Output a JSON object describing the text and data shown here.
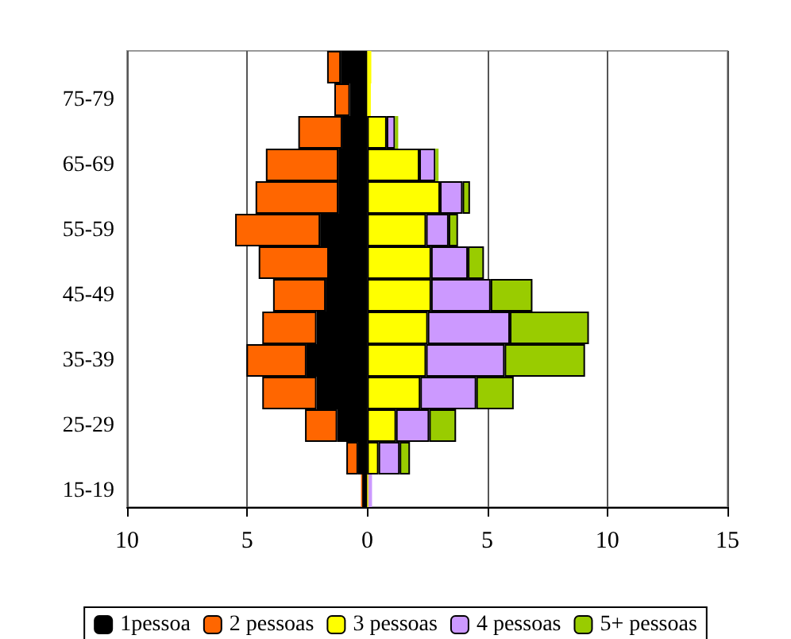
{
  "chart_data": {
    "type": "bar",
    "orientation": "horizontal",
    "stacked": true,
    "categories": [
      null,
      "75-79",
      null,
      "65-69",
      null,
      "55-59",
      null,
      "45-49",
      null,
      "35-39",
      null,
      "25-29",
      null,
      "15-19"
    ],
    "series": [
      {
        "name": "1pessoa",
        "color": "#000000",
        "values": [
          -1.1,
          -0.72,
          -1.04,
          -1.2,
          -1.2,
          -1.96,
          -1.6,
          -1.73,
          -2.11,
          -2.53,
          -2.11,
          -1.25,
          -0.38,
          -0.21
        ]
      },
      {
        "name": "2 pessoas",
        "color": "#ff6600",
        "values": [
          -0.57,
          -0.65,
          -1.83,
          -3.02,
          -3.45,
          -3.54,
          -2.92,
          -2.19,
          -2.26,
          -2.5,
          -2.26,
          -1.34,
          -0.49,
          -0.05
        ]
      },
      {
        "name": "3 pessoas",
        "color": "#ffff00",
        "values": [
          0.17,
          0.15,
          0.81,
          2.17,
          3.03,
          2.45,
          2.66,
          2.66,
          2.52,
          2.45,
          2.21,
          1.2,
          0.47,
          0.05
        ]
      },
      {
        "name": "4 pessoas",
        "color": "#cc99ff",
        "values": [
          null,
          null,
          0.35,
          0.67,
          0.94,
          0.94,
          1.53,
          2.48,
          3.42,
          3.27,
          2.33,
          1.38,
          0.88,
          0.15
        ]
      },
      {
        "name": "5+ pessoas",
        "color": "#99cc00",
        "values": [
          null,
          null,
          0.13,
          0.13,
          0.31,
          0.39,
          0.67,
          1.74,
          3.29,
          3.35,
          1.56,
          1.12,
          0.43,
          null
        ]
      }
    ],
    "xlim": [
      -10,
      15
    ],
    "xticks": [
      {
        "value": -10,
        "label": "10"
      },
      {
        "value": -5,
        "label": "5"
      },
      0,
      5,
      10,
      15
    ],
    "grid": "x",
    "legend": "bottom"
  }
}
